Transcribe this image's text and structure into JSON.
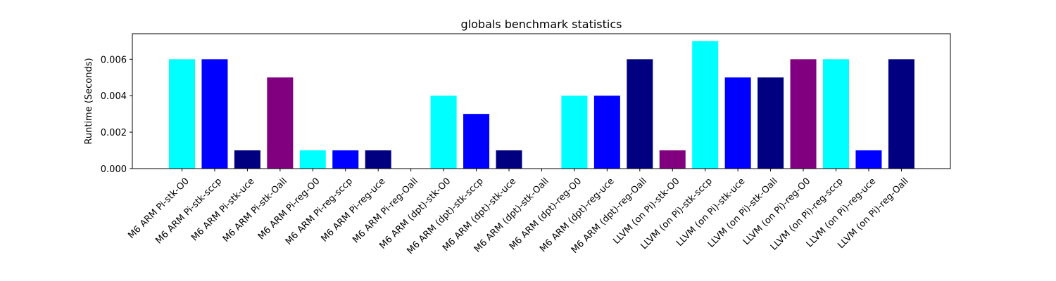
{
  "chart_data": {
    "type": "bar",
    "title": "globals benchmark statistics",
    "xlabel": "",
    "ylabel": "Runtime (Seconds)",
    "ylim": [
      0,
      0.0074
    ],
    "yticks": [
      {
        "value": 0,
        "label": "0.000"
      },
      {
        "value": 0.002,
        "label": "0.002"
      },
      {
        "value": 0.004,
        "label": "0.004"
      },
      {
        "value": 0.006,
        "label": "0.006"
      }
    ],
    "grid": false,
    "categories": [
      "M6 ARM Pi-stk-O0",
      "M6 ARM Pi-stk-sccp",
      "M6 ARM Pi-stk-uce",
      "M6 ARM Pi-stk-Oall",
      "M6 ARM Pi-reg-O0",
      "M6 ARM Pi-reg-sccp",
      "M6 ARM Pi-reg-uce",
      "M6 ARM Pi-reg-Oall",
      "M6 ARM (dpt)-stk-O0",
      "M6 ARM (dpt)-stk-sccp",
      "M6 ARM (dpt)-stk-uce",
      "M6 ARM (dpt)-stk-Oall",
      "M6 ARM (dpt)-reg-O0",
      "M6 ARM (dpt)-reg-uce",
      "M6 ARM (dpt)-reg-Oall",
      "LLVM (on Pi)-stk-O0",
      "LLVM (on Pi)-stk-sccp",
      "LLVM (on Pi)-stk-uce",
      "LLVM (on Pi)-stk-Oall",
      "LLVM (on Pi)-reg-O0",
      "LLVM (on Pi)-reg-sccp",
      "LLVM (on Pi)-reg-uce",
      "LLVM (on Pi)-reg-Oall"
    ],
    "values": [
      0.006,
      0.006,
      0.001,
      0.005,
      0.001,
      0.001,
      0.001,
      0.0,
      0.004,
      0.003,
      0.001,
      0.0,
      0.004,
      0.004,
      0.006,
      0.001,
      0.007,
      0.005,
      0.005,
      0.006,
      0.006,
      0.001,
      0.006
    ],
    "colors": [
      "#00ffff",
      "#0000ff",
      "#000080",
      "#800080",
      "#00ffff",
      "#0000ff",
      "#000080",
      "#800080",
      "#00ffff",
      "#0000ff",
      "#000080",
      "#800080",
      "#00ffff",
      "#0000ff",
      "#000080",
      "#800080",
      "#00ffff",
      "#0000ff",
      "#000080",
      "#800080",
      "#00ffff",
      "#0000ff",
      "#000080"
    ]
  }
}
